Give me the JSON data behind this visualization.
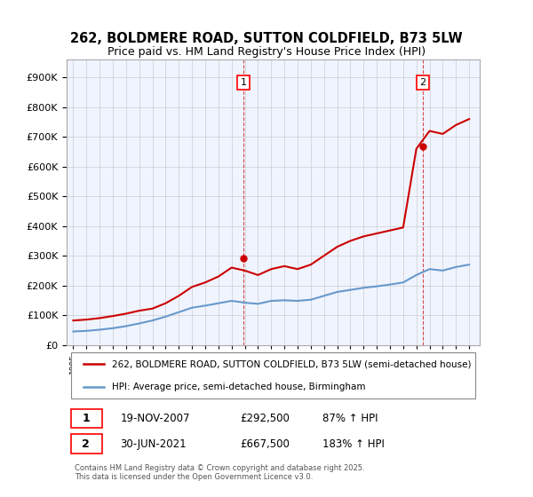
{
  "title_line1": "262, BOLDMERE ROAD, SUTTON COLDFIELD, B73 5LW",
  "title_line2": "Price paid vs. HM Land Registry's House Price Index (HPI)",
  "ylabel": "",
  "background_color": "#ffffff",
  "grid_color": "#cccccc",
  "plot_bg_color": "#f0f4ff",
  "red_line_color": "#cc0000",
  "blue_line_color": "#6699cc",
  "marker1_x": 2007.89,
  "marker2_x": 2021.5,
  "marker1_y": 292500,
  "marker2_y": 667500,
  "ylim": [
    0,
    960000
  ],
  "xlim_start": 1994.5,
  "xlim_end": 2025.8,
  "legend_label_red": "262, BOLDMERE ROAD, SUTTON COLDFIELD, B73 5LW (semi-detached house)",
  "legend_label_blue": "HPI: Average price, semi-detached house, Birmingham",
  "annotation1_label": "1",
  "annotation2_label": "2",
  "table_row1": [
    "1",
    "19-NOV-2007",
    "£292,500",
    "87% ↑ HPI"
  ],
  "table_row2": [
    "2",
    "30-JUN-2021",
    "£667,500",
    "183% ↑ HPI"
  ],
  "footnote": "Contains HM Land Registry data © Crown copyright and database right 2025.\nThis data is licensed under the Open Government Licence v3.0.",
  "hpi_years": [
    1995,
    1996,
    1997,
    1998,
    1999,
    2000,
    2001,
    2002,
    2003,
    2004,
    2005,
    2006,
    2007,
    2008,
    2009,
    2010,
    2011,
    2012,
    2013,
    2014,
    2015,
    2016,
    2017,
    2018,
    2019,
    2020,
    2021,
    2022,
    2023,
    2024,
    2025
  ],
  "hpi_values": [
    45000,
    47000,
    51000,
    56000,
    63000,
    72000,
    82000,
    95000,
    110000,
    125000,
    132000,
    140000,
    148000,
    142000,
    138000,
    148000,
    150000,
    148000,
    152000,
    165000,
    178000,
    185000,
    192000,
    197000,
    203000,
    210000,
    235000,
    255000,
    250000,
    262000,
    270000
  ],
  "prop_years": [
    1995,
    1996,
    1997,
    1998,
    1999,
    2000,
    2001,
    2002,
    2003,
    2004,
    2005,
    2006,
    2007,
    2008,
    2009,
    2010,
    2011,
    2012,
    2013,
    2014,
    2015,
    2016,
    2017,
    2018,
    2019,
    2020,
    2021,
    2022,
    2023,
    2024,
    2025
  ],
  "prop_values": [
    82000,
    85000,
    90000,
    97000,
    105000,
    115000,
    122000,
    140000,
    165000,
    195000,
    210000,
    230000,
    260000,
    250000,
    235000,
    255000,
    265000,
    255000,
    270000,
    300000,
    330000,
    350000,
    365000,
    375000,
    385000,
    395000,
    660000,
    720000,
    710000,
    740000,
    760000
  ]
}
